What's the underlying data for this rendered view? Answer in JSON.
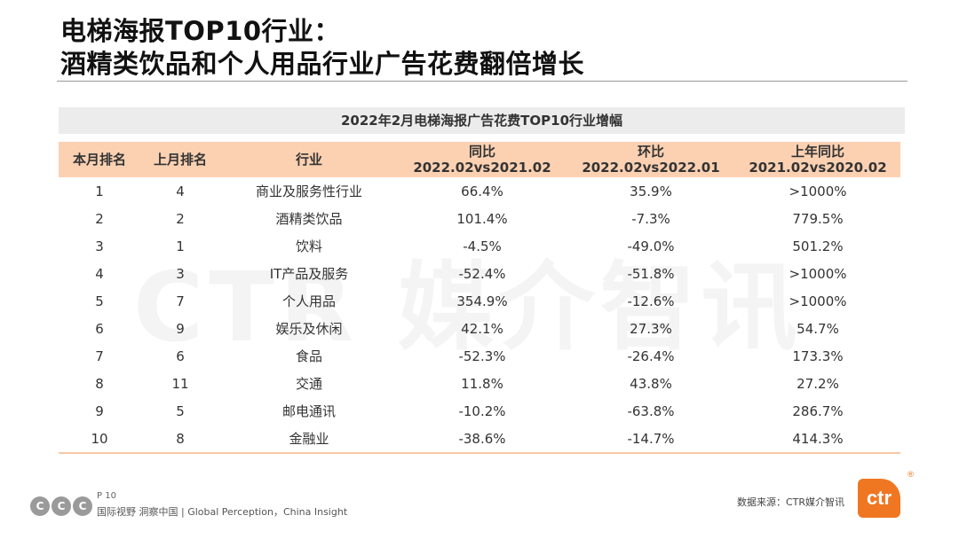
{
  "title": {
    "line1": "电梯海报TOP10行业：",
    "line2": "酒精类饮品和个人用品行业广告花费翻倍增长"
  },
  "watermark": "CTR 媒介智讯",
  "table": {
    "title": "2022年2月电梯海报广告花费TOP10行业增幅",
    "headers": [
      {
        "line1": "本月排名",
        "line2": ""
      },
      {
        "line1": "上月排名",
        "line2": ""
      },
      {
        "line1": "行业",
        "line2": ""
      },
      {
        "line1": "同比",
        "line2": "2022.02vs2021.02"
      },
      {
        "line1": "环比",
        "line2": "2022.02vs2022.01"
      },
      {
        "line1": "上年同比",
        "line2": "2021.02vs2020.02"
      }
    ],
    "rows": [
      [
        "1",
        "4",
        "商业及服务性行业",
        "66.4%",
        "35.9%",
        ">1000%"
      ],
      [
        "2",
        "2",
        "酒精类饮品",
        "101.4%",
        "-7.3%",
        "779.5%"
      ],
      [
        "3",
        "1",
        "饮料",
        "-4.5%",
        "-49.0%",
        "501.2%"
      ],
      [
        "4",
        "3",
        "IT产品及服务",
        "-52.4%",
        "-51.8%",
        ">1000%"
      ],
      [
        "5",
        "7",
        "个人用品",
        "354.9%",
        "-12.6%",
        ">1000%"
      ],
      [
        "6",
        "9",
        "娱乐及休闲",
        "42.1%",
        "27.3%",
        "54.7%"
      ],
      [
        "7",
        "6",
        "食品",
        "-52.3%",
        "-26.4%",
        "173.3%"
      ],
      [
        "8",
        "11",
        "交通",
        "11.8%",
        "43.8%",
        "27.2%"
      ],
      [
        "9",
        "5",
        "邮电通讯",
        "-10.2%",
        "-63.8%",
        "286.7%"
      ],
      [
        "10",
        "8",
        "金融业",
        "-38.6%",
        "-14.7%",
        "414.3%"
      ]
    ]
  },
  "footer": {
    "page": "P 10",
    "tagline": "国际视野  洞察中国 | Global Perception，China Insight",
    "source": "数据来源：CTR媒介智讯",
    "logo": "ctr",
    "logo_reg": "®",
    "icon_letters": [
      "C",
      "C",
      "C"
    ]
  },
  "colors": {
    "header_bg": "#fbd1b2",
    "table_title_bg": "#ececec",
    "brand": "#f07722"
  }
}
